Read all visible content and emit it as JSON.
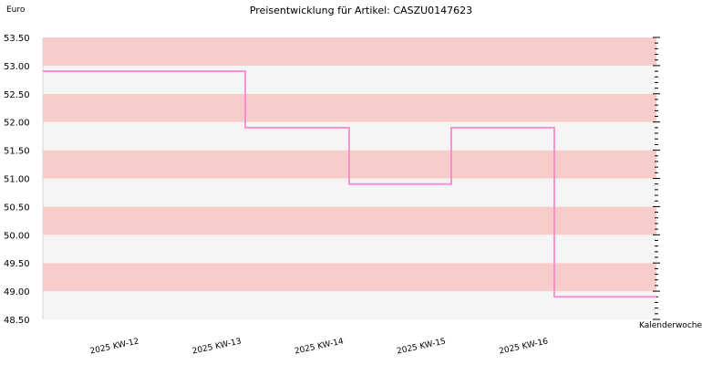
{
  "chart_data": {
    "type": "line",
    "step": true,
    "title": "Preisentwicklung für Artikel: CASZU0147623",
    "ylabel": "Euro",
    "xlabel": "Kalenderwoche",
    "ylim": [
      48.5,
      53.5
    ],
    "yticks": [
      "48.50",
      "49.00",
      "49.50",
      "50.00",
      "50.50",
      "51.00",
      "51.50",
      "52.00",
      "52.50",
      "53.00",
      "53.50"
    ],
    "categories": [
      "2025 KW-12",
      "2025 KW-13",
      "2025 KW-14",
      "2025 KW-15",
      "2025 KW-16"
    ],
    "series": [
      {
        "values": [
          52.9,
          51.9,
          50.9,
          51.9,
          48.9
        ]
      }
    ],
    "bands": [
      "#f9cccc",
      "#f5f5f5"
    ],
    "line_color": "#ff88cc",
    "grid": true
  }
}
